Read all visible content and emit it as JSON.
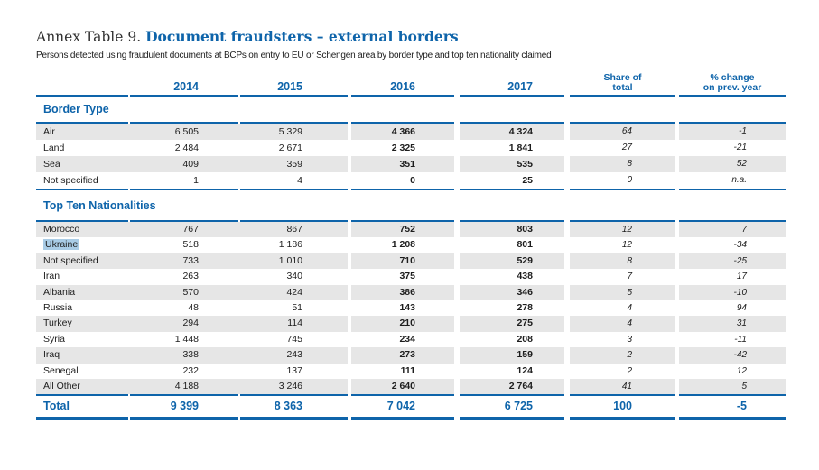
{
  "page": {
    "title_prefix": "Annex Table 9.",
    "title_main": "Document fraudsters – external borders",
    "subtitle": "Persons detected using fraudulent documents at BCPs on entry to EU or Schengen area by border type and top ten nationality claimed"
  },
  "header": {
    "y2014": "2014",
    "y2015": "2015",
    "y2016": "2016",
    "y2017": "2017",
    "share_line1": "Share of",
    "share_line2": "total",
    "pct_line1": "% change",
    "pct_line2": "on prev. year"
  },
  "sections": [
    {
      "heading": "Border Type",
      "rows": [
        {
          "label": "Air",
          "y2014": "6 505",
          "y2015": "5 329",
          "y2016": "4 366",
          "y2017": "4 324",
          "share": "64",
          "pct": "-1"
        },
        {
          "label": "Land",
          "y2014": "2 484",
          "y2015": "2 671",
          "y2016": "2 325",
          "y2017": "1 841",
          "share": "27",
          "pct": "-21"
        },
        {
          "label": "Sea",
          "y2014": "409",
          "y2015": "359",
          "y2016": "351",
          "y2017": "535",
          "share": "8",
          "pct": "52"
        },
        {
          "label": "Not specified",
          "y2014": "1",
          "y2015": "4",
          "y2016": "0",
          "y2017": "25",
          "share": "0",
          "pct": "n.a."
        }
      ]
    },
    {
      "heading": "Top Ten Nationalities",
      "rows": [
        {
          "label": "Morocco",
          "y2014": "767",
          "y2015": "867",
          "y2016": "752",
          "y2017": "803",
          "share": "12",
          "pct": "7"
        },
        {
          "label": "Ukraine",
          "y2014": "518",
          "y2015": "1 186",
          "y2016": "1 208",
          "y2017": "801",
          "share": "12",
          "pct": "-34",
          "highlighted": true
        },
        {
          "label": "Not specified",
          "y2014": "733",
          "y2015": "1 010",
          "y2016": "710",
          "y2017": "529",
          "share": "8",
          "pct": "-25"
        },
        {
          "label": "Iran",
          "y2014": "263",
          "y2015": "340",
          "y2016": "375",
          "y2017": "438",
          "share": "7",
          "pct": "17"
        },
        {
          "label": "Albania",
          "y2014": "570",
          "y2015": "424",
          "y2016": "386",
          "y2017": "346",
          "share": "5",
          "pct": "-10"
        },
        {
          "label": "Russia",
          "y2014": "48",
          "y2015": "51",
          "y2016": "143",
          "y2017": "278",
          "share": "4",
          "pct": "94"
        },
        {
          "label": "Turkey",
          "y2014": "294",
          "y2015": "114",
          "y2016": "210",
          "y2017": "275",
          "share": "4",
          "pct": "31"
        },
        {
          "label": "Syria",
          "y2014": "1 448",
          "y2015": "745",
          "y2016": "234",
          "y2017": "208",
          "share": "3",
          "pct": "-11"
        },
        {
          "label": "Iraq",
          "y2014": "338",
          "y2015": "243",
          "y2016": "273",
          "y2017": "159",
          "share": "2",
          "pct": "-42"
        },
        {
          "label": "Senegal",
          "y2014": "232",
          "y2015": "137",
          "y2016": "111",
          "y2017": "124",
          "share": "2",
          "pct": "12"
        },
        {
          "label": "All Other",
          "y2014": "4 188",
          "y2015": "3 246",
          "y2016": "2 640",
          "y2017": "2 764",
          "share": "41",
          "pct": "5"
        }
      ]
    }
  ],
  "total": {
    "label": "Total",
    "y2014": "9 399",
    "y2015": "8 363",
    "y2016": "7 042",
    "y2017": "6 725",
    "share": "100",
    "pct": "-5"
  },
  "colors": {
    "accent": "#0e64aa",
    "stripe": "#e6e6e6",
    "selection_highlight": "#a9cce6",
    "text": "#1d1d1d"
  }
}
